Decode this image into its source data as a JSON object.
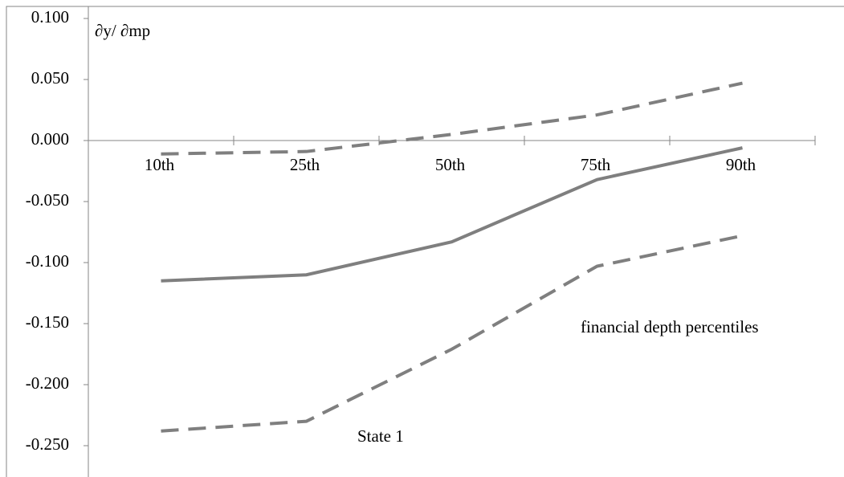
{
  "chart_data": {
    "type": "line",
    "y_label": "∂y/ ∂mp",
    "annotations": [
      "financial depth percentiles",
      "State 1"
    ],
    "categories": [
      "10th",
      "25th",
      "50th",
      "75th",
      "90th"
    ],
    "series": [
      {
        "color": "#7f7f7f",
        "dashed": false,
        "values": [
          -0.115,
          -0.11,
          -0.083,
          -0.032,
          -0.006
        ]
      },
      {
        "color": "#7f7f7f",
        "dashed": true,
        "values": [
          -0.011,
          -0.009,
          0.005,
          0.021,
          0.047
        ]
      },
      {
        "color": "#7f7f7f",
        "dashed": true,
        "values": [
          -0.238,
          -0.23,
          -0.171,
          -0.103,
          -0.078
        ]
      }
    ],
    "ylim": [
      -0.25,
      0.1
    ],
    "yticks": [
      {
        "value": 0.1,
        "label": "0.100"
      },
      {
        "value": 0.05,
        "label": "0.050"
      },
      {
        "value": 0,
        "label": "0.000"
      },
      {
        "value": -0.05,
        "label": "-0.050"
      },
      {
        "value": -0.1,
        "label": "-0.100"
      },
      {
        "value": -0.15,
        "label": "-0.150"
      },
      {
        "value": -0.2,
        "label": "-0.200"
      },
      {
        "value": -0.25,
        "label": "-0.250"
      }
    ]
  }
}
